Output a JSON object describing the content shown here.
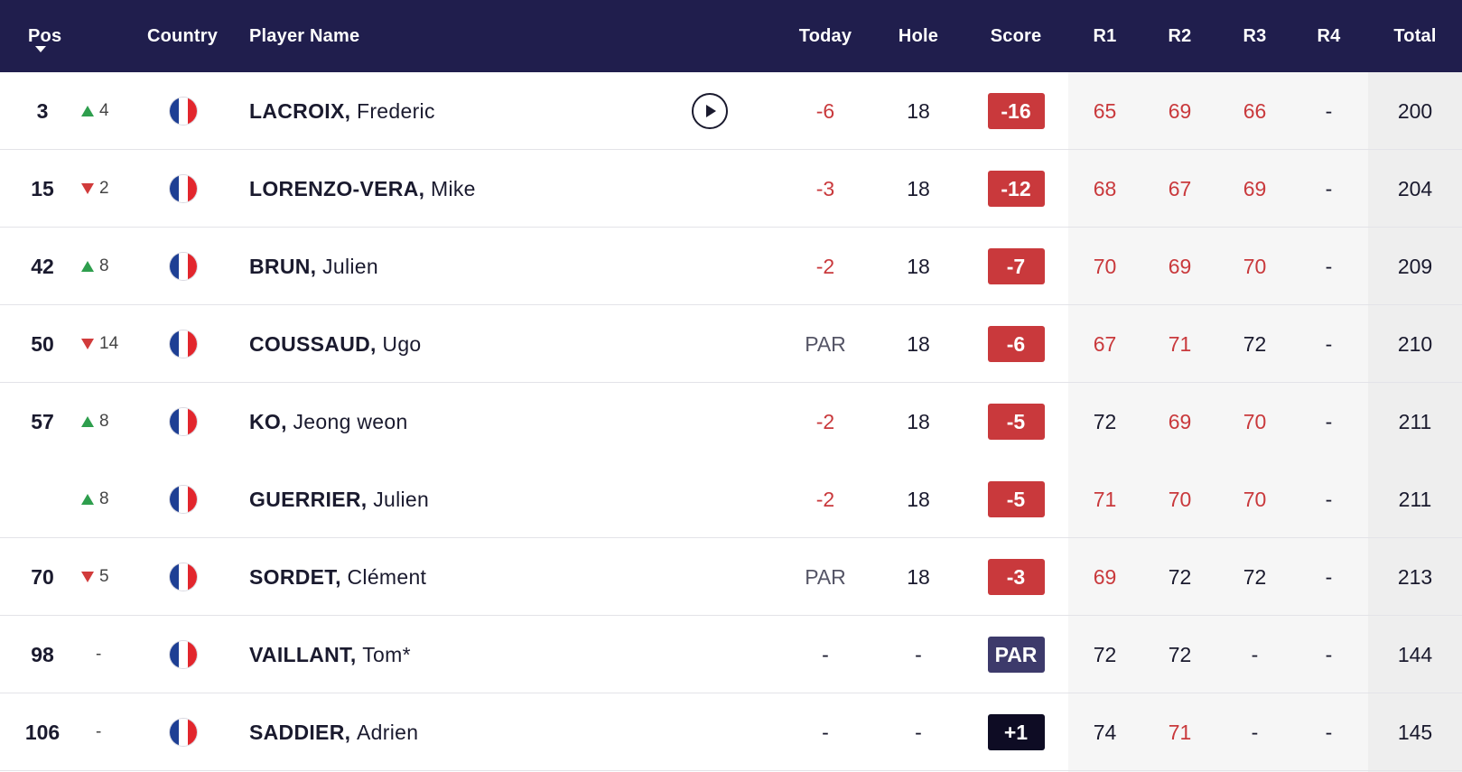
{
  "header": {
    "pos": "Pos",
    "country": "Country",
    "player_name": "Player Name",
    "today": "Today",
    "hole": "Hole",
    "score": "Score",
    "r1": "R1",
    "r2": "R2",
    "r3": "R3",
    "r4": "R4",
    "total": "Total"
  },
  "colors": {
    "header_bg": "#201e4d",
    "under_par": "#c9393c",
    "par_badge": "#3d3a6b",
    "over_par_badge": "#0e0c24",
    "move_up": "#2e9e4d",
    "move_down": "#d13b3b"
  },
  "rows": [
    {
      "pos": "3",
      "move_dir": "up",
      "move": "4",
      "country": "France",
      "last": "LACROIX,",
      "first": "Frederic",
      "today": "-6",
      "hole": "18",
      "score": "-16",
      "score_type": "under",
      "r1": "65",
      "r2": "69",
      "r3": "66",
      "r4": "-",
      "total": "200",
      "r1_under": true,
      "r2_under": true,
      "r3_under": true,
      "has_video": true
    },
    {
      "pos": "15",
      "move_dir": "down",
      "move": "2",
      "country": "France",
      "last": "LORENZO-VERA,",
      "first": "Mike",
      "today": "-3",
      "hole": "18",
      "score": "-12",
      "score_type": "under",
      "r1": "68",
      "r2": "67",
      "r3": "69",
      "r4": "-",
      "total": "204",
      "r1_under": true,
      "r2_under": true,
      "r3_under": true
    },
    {
      "pos": "42",
      "move_dir": "up",
      "move": "8",
      "country": "France",
      "last": "BRUN,",
      "first": "Julien",
      "today": "-2",
      "hole": "18",
      "score": "-7",
      "score_type": "under",
      "r1": "70",
      "r2": "69",
      "r3": "70",
      "r4": "-",
      "total": "209",
      "r1_under": true,
      "r2_under": true,
      "r3_under": true
    },
    {
      "pos": "50",
      "move_dir": "down",
      "move": "14",
      "country": "France",
      "last": "COUSSAUD,",
      "first": "Ugo",
      "today": "PAR",
      "hole": "18",
      "score": "-6",
      "score_type": "under",
      "r1": "67",
      "r2": "71",
      "r3": "72",
      "r4": "-",
      "total": "210",
      "r1_under": true,
      "r2_under": true,
      "r3_under": false
    },
    {
      "pos": "57",
      "move_dir": "up",
      "move": "8",
      "country": "France",
      "last": "KO,",
      "first": "Jeong weon",
      "today": "-2",
      "hole": "18",
      "score": "-5",
      "score_type": "under",
      "r1": "72",
      "r2": "69",
      "r3": "70",
      "r4": "-",
      "total": "211",
      "r1_under": false,
      "r2_under": true,
      "r3_under": true,
      "no_divider": true
    },
    {
      "pos": "",
      "move_dir": "up",
      "move": "8",
      "country": "France",
      "last": "GUERRIER,",
      "first": "Julien",
      "today": "-2",
      "hole": "18",
      "score": "-5",
      "score_type": "under",
      "r1": "71",
      "r2": "70",
      "r3": "70",
      "r4": "-",
      "total": "211",
      "r1_under": true,
      "r2_under": true,
      "r3_under": true
    },
    {
      "pos": "70",
      "move_dir": "down",
      "move": "5",
      "country": "France",
      "last": "SORDET,",
      "first": "Clément",
      "today": "PAR",
      "hole": "18",
      "score": "-3",
      "score_type": "under",
      "r1": "69",
      "r2": "72",
      "r3": "72",
      "r4": "-",
      "total": "213",
      "r1_under": true,
      "r2_under": false,
      "r3_under": false
    },
    {
      "pos": "98",
      "move_dir": "none",
      "move": "-",
      "country": "France",
      "last": "VAILLANT,",
      "first": "Tom*",
      "today": "-",
      "hole": "-",
      "score": "PAR",
      "score_type": "par",
      "r1": "72",
      "r2": "72",
      "r3": "-",
      "r4": "-",
      "total": "144",
      "r1_under": false,
      "r2_under": false,
      "r3_under": false
    },
    {
      "pos": "106",
      "move_dir": "none",
      "move": "-",
      "country": "France",
      "last": "SADDIER,",
      "first": "Adrien",
      "today": "-",
      "hole": "-",
      "score": "+1",
      "score_type": "over",
      "r1": "74",
      "r2": "71",
      "r3": "-",
      "r4": "-",
      "total": "145",
      "r1_under": false,
      "r2_under": true,
      "r3_under": false
    }
  ]
}
